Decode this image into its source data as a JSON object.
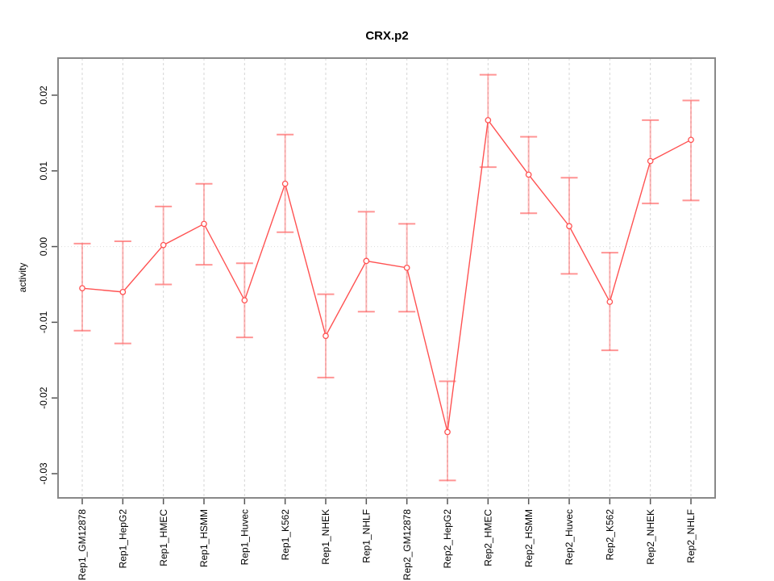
{
  "chart_data": {
    "type": "line",
    "title": "CRX.p2",
    "xlabel": "",
    "ylabel": "activity",
    "legend": "none",
    "categories": [
      "Rep1_GM12878",
      "Rep1_HepG2",
      "Rep1_HMEC",
      "Rep1_HSMM",
      "Rep1_Huvec",
      "Rep1_K562",
      "Rep1_NHEK",
      "Rep1_NHLF",
      "Rep2_GM12878",
      "Rep2_HepG2",
      "Rep2_HMEC",
      "Rep2_HSMM",
      "Rep2_Huvec",
      "Rep2_K562",
      "Rep2_NHEK",
      "Rep2_NHLF"
    ],
    "series": [
      {
        "name": "activity",
        "values": [
          -0.0055,
          -0.006,
          0.0002,
          0.003,
          -0.0071,
          0.0083,
          -0.0118,
          -0.0019,
          -0.0028,
          -0.0245,
          0.0167,
          0.0095,
          0.0027,
          -0.0073,
          0.0113,
          0.0141
        ],
        "error_upper": [
          0.0004,
          0.0007,
          0.0053,
          0.0083,
          -0.0022,
          0.0148,
          -0.0063,
          0.0046,
          0.003,
          -0.0178,
          0.0227,
          0.0145,
          0.0091,
          -0.0008,
          0.0167,
          0.0193
        ],
        "error_lower": [
          -0.0111,
          -0.0128,
          -0.005,
          -0.0024,
          -0.012,
          0.0019,
          -0.0173,
          -0.0086,
          -0.0086,
          -0.0309,
          0.0105,
          0.0044,
          -0.0036,
          -0.0137,
          0.0057,
          0.0061
        ]
      }
    ],
    "ytick_labels": [
      "0.02",
      "0.01",
      "0.00",
      "-0.01",
      "-0.02",
      "-0.03"
    ],
    "ylim": [
      -0.0332,
      0.0249
    ],
    "grid": "vertical dashed gridline per category; dotted horizontal line at 0",
    "colors": {
      "series": "#ff5252",
      "error_stem": "rgba(255,82,82,0.42)",
      "error_cap": "rgba(255,82,82,0.62)",
      "marker_fill": "#ffffff",
      "plot_border": "#888888",
      "tick": "#555555",
      "gridline": "#d6d6d6",
      "zero_line": "#dcdcdc",
      "text": "#000000"
    }
  }
}
